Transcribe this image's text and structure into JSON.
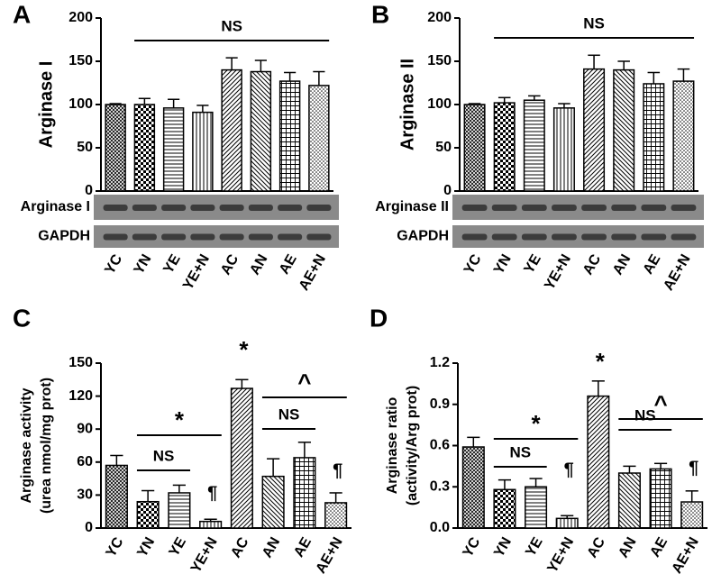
{
  "chart_data": [
    {
      "type": "bar",
      "panel": "A",
      "ylabel": [
        "Arginase I"
      ],
      "categories": [
        "YC",
        "YN",
        "YE",
        "YE+N",
        "AC",
        "AN",
        "AE",
        "AE+N"
      ],
      "values": [
        100,
        100,
        96,
        91,
        140,
        138,
        127,
        122
      ],
      "errors": [
        1,
        7,
        10,
        8,
        14,
        13,
        10,
        16
      ],
      "ylim": [
        0,
        200
      ],
      "yticks": [
        0,
        50,
        100,
        150,
        200
      ],
      "color": "#000000",
      "blot_labels": [
        "Arginase I",
        "GAPDH"
      ],
      "annotations": [
        "NS"
      ]
    },
    {
      "type": "bar",
      "panel": "B",
      "ylabel": [
        "Arginase II"
      ],
      "categories": [
        "YC",
        "YN",
        "YE",
        "YE+N",
        "AC",
        "AN",
        "AE",
        "AE+N"
      ],
      "values": [
        100,
        102,
        105,
        96,
        141,
        140,
        124,
        127
      ],
      "errors": [
        1,
        6,
        5,
        5,
        16,
        10,
        13,
        14
      ],
      "ylim": [
        0,
        200
      ],
      "yticks": [
        0,
        50,
        100,
        150,
        200
      ],
      "color": "#000000",
      "blot_labels": [
        "Arginase II",
        "GAPDH"
      ],
      "annotations": [
        "NS"
      ]
    },
    {
      "type": "bar",
      "panel": "C",
      "ylabel": [
        "Arginase activity",
        "(urea nmol/mg prot)"
      ],
      "categories": [
        "YC",
        "YN",
        "YE",
        "YE+N",
        "AC",
        "AN",
        "AE",
        "AE+N"
      ],
      "values": [
        57,
        24,
        32,
        6,
        127,
        47,
        64,
        23
      ],
      "errors": [
        9,
        10,
        7,
        2,
        8,
        16,
        14,
        9
      ],
      "ylim": [
        0,
        150
      ],
      "yticks": [
        0,
        30,
        60,
        90,
        120,
        150
      ],
      "color": "#000000",
      "annotations": [
        "*",
        "NS",
        "*",
        "¶",
        "NS",
        "^",
        "¶"
      ]
    },
    {
      "type": "bar",
      "panel": "D",
      "ylabel": [
        "Arginase ratio",
        "(activity/Arg prot)"
      ],
      "categories": [
        "YC",
        "YN",
        "YE",
        "YE+N",
        "AC",
        "AN",
        "AE",
        "AE+N"
      ],
      "values": [
        0.59,
        0.28,
        0.3,
        0.07,
        0.96,
        0.4,
        0.43,
        0.19
      ],
      "errors": [
        0.07,
        0.07,
        0.06,
        0.02,
        0.11,
        0.05,
        0.04,
        0.08
      ],
      "ylim": [
        0,
        1.2
      ],
      "yticks": [
        {
          "value": 0,
          "label": "0.0"
        },
        0.3,
        0.6,
        0.9,
        1.2
      ],
      "color": "#000000",
      "annotations": [
        "*",
        "NS",
        "*",
        "¶",
        "NS",
        "^",
        "¶"
      ]
    }
  ]
}
